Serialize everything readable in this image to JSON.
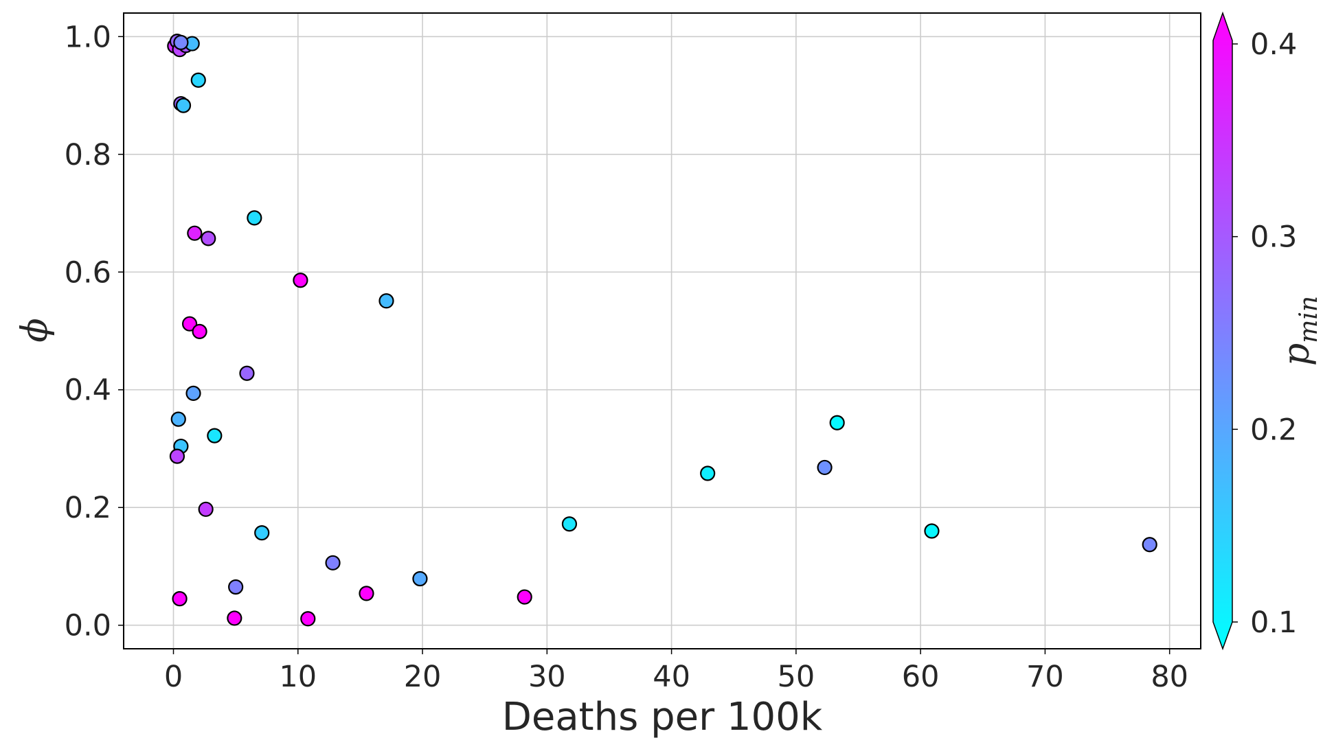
{
  "chart_data": {
    "type": "scatter",
    "xlabel": "Deaths per 100k",
    "ylabel": "ϕ",
    "xlim": [
      -4,
      82.5
    ],
    "ylim": [
      -0.04,
      1.04
    ],
    "xticks": [
      0,
      10,
      20,
      30,
      40,
      50,
      60,
      70,
      80
    ],
    "yticks": [
      0.0,
      0.2,
      0.4,
      0.6,
      0.8,
      1.0
    ],
    "xtick_labels": [
      "0",
      "10",
      "20",
      "30",
      "40",
      "50",
      "60",
      "70",
      "80"
    ],
    "ytick_labels": [
      "0.0",
      "0.2",
      "0.4",
      "0.6",
      "0.8",
      "1.0"
    ],
    "grid": true,
    "colorbar": {
      "label_base": "p",
      "label_sub": "min",
      "range": [
        0.1,
        0.4
      ],
      "ticks": [
        0.1,
        0.2,
        0.3,
        0.4
      ],
      "tick_labels": [
        "0.1",
        "0.2",
        "0.3",
        "0.4"
      ],
      "colormap": "cool",
      "color_low": "#00ffff",
      "color_high": "#ff00ff",
      "extend": "both"
    },
    "series": [
      {
        "points": [
          {
            "x": 0.1,
            "y": 0.984,
            "c": 0.35
          },
          {
            "x": 0.3,
            "y": 0.992,
            "c": 0.28
          },
          {
            "x": 0.5,
            "y": 0.978,
            "c": 0.32
          },
          {
            "x": 1.0,
            "y": 0.985,
            "c": 0.3
          },
          {
            "x": 1.5,
            "y": 0.988,
            "c": 0.18
          },
          {
            "x": 0.6,
            "y": 0.99,
            "c": 0.24
          },
          {
            "x": 2.0,
            "y": 0.926,
            "c": 0.15
          },
          {
            "x": 0.6,
            "y": 0.886,
            "c": 0.28
          },
          {
            "x": 0.8,
            "y": 0.883,
            "c": 0.17
          },
          {
            "x": 6.5,
            "y": 0.692,
            "c": 0.14
          },
          {
            "x": 1.7,
            "y": 0.666,
            "c": 0.36
          },
          {
            "x": 2.8,
            "y": 0.657,
            "c": 0.31
          },
          {
            "x": 10.2,
            "y": 0.586,
            "c": 0.4
          },
          {
            "x": 17.1,
            "y": 0.551,
            "c": 0.18
          },
          {
            "x": 1.3,
            "y": 0.512,
            "c": 0.4
          },
          {
            "x": 2.1,
            "y": 0.499,
            "c": 0.4
          },
          {
            "x": 5.9,
            "y": 0.428,
            "c": 0.28
          },
          {
            "x": 1.6,
            "y": 0.394,
            "c": 0.21
          },
          {
            "x": 0.4,
            "y": 0.35,
            "c": 0.19
          },
          {
            "x": 0.6,
            "y": 0.304,
            "c": 0.17
          },
          {
            "x": 3.3,
            "y": 0.322,
            "c": 0.13
          },
          {
            "x": 0.3,
            "y": 0.287,
            "c": 0.32
          },
          {
            "x": 2.6,
            "y": 0.197,
            "c": 0.33
          },
          {
            "x": 7.1,
            "y": 0.157,
            "c": 0.16
          },
          {
            "x": 12.8,
            "y": 0.106,
            "c": 0.25
          },
          {
            "x": 5.0,
            "y": 0.065,
            "c": 0.25
          },
          {
            "x": 0.5,
            "y": 0.045,
            "c": 0.4
          },
          {
            "x": 4.9,
            "y": 0.012,
            "c": 0.4
          },
          {
            "x": 10.8,
            "y": 0.011,
            "c": 0.4
          },
          {
            "x": 15.5,
            "y": 0.054,
            "c": 0.4
          },
          {
            "x": 19.8,
            "y": 0.079,
            "c": 0.2
          },
          {
            "x": 28.2,
            "y": 0.048,
            "c": 0.4
          },
          {
            "x": 31.8,
            "y": 0.172,
            "c": 0.13
          },
          {
            "x": 42.9,
            "y": 0.258,
            "c": 0.12
          },
          {
            "x": 52.3,
            "y": 0.268,
            "c": 0.23
          },
          {
            "x": 53.3,
            "y": 0.344,
            "c": 0.11
          },
          {
            "x": 60.9,
            "y": 0.16,
            "c": 0.11
          },
          {
            "x": 78.4,
            "y": 0.137,
            "c": 0.24
          }
        ]
      }
    ]
  }
}
